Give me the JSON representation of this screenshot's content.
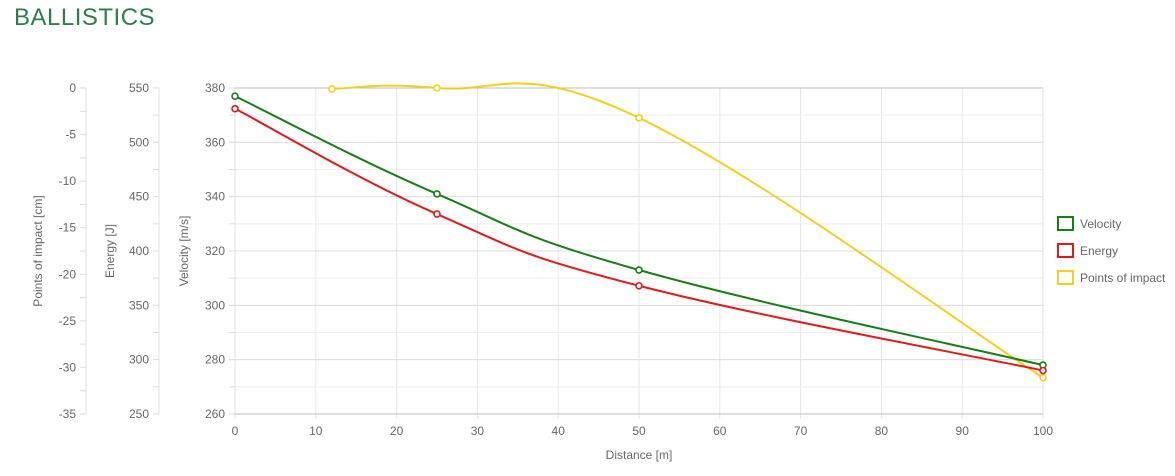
{
  "page": {
    "title": "BALLISTICS"
  },
  "chart_data": {
    "type": "line",
    "x_axis": {
      "label": "Distance [m]",
      "range": [
        0,
        100
      ],
      "ticks": [
        0,
        10,
        20,
        30,
        40,
        50,
        60,
        70,
        80,
        90,
        100
      ]
    },
    "y_axes": [
      {
        "id": "poi",
        "label": "Points of impact [cm]",
        "range": [
          -35,
          0
        ],
        "ticks": [
          0,
          -5,
          -10,
          -15,
          -20,
          -25,
          -30,
          -35
        ]
      },
      {
        "id": "energy",
        "label": "Energy [J]",
        "range": [
          250,
          550
        ],
        "ticks": [
          550,
          500,
          450,
          400,
          350,
          300,
          250
        ]
      },
      {
        "id": "velocity",
        "label": "Velocity [m/s]",
        "range": [
          260,
          380
        ],
        "ticks": [
          380,
          360,
          340,
          320,
          300,
          280,
          260
        ]
      }
    ],
    "grid": true,
    "legend_position": "right",
    "series": [
      {
        "name": "Velocity",
        "axis": "velocity",
        "color": "#168016",
        "points": [
          [
            0,
            377
          ],
          [
            25,
            341
          ],
          [
            50,
            313
          ],
          [
            100,
            278
          ]
        ]
      },
      {
        "name": "Energy",
        "axis": "energy",
        "color": "#e31a1a",
        "points": [
          [
            0,
            531
          ],
          [
            25,
            434
          ],
          [
            50,
            368
          ],
          [
            100,
            290
          ]
        ]
      },
      {
        "name": "Points of impact",
        "axis": "poi",
        "color": "#f5cf1a",
        "points": [
          [
            12,
            -0.1
          ],
          [
            25,
            0
          ],
          [
            50,
            -3.2
          ],
          [
            100,
            -31.1
          ]
        ]
      }
    ]
  }
}
